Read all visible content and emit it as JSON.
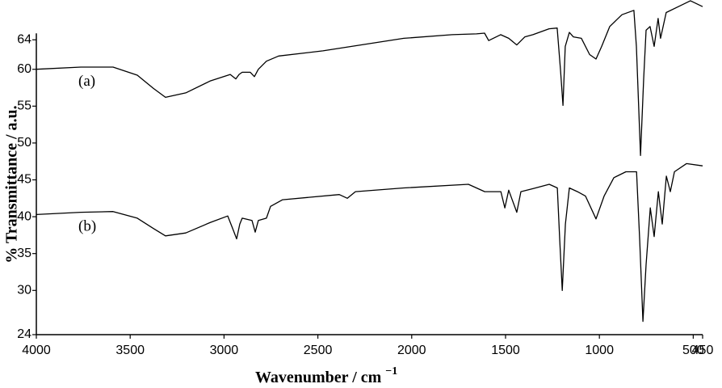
{
  "chart_data": {
    "type": "line",
    "xlabel": "Wavenumber / cm",
    "xlabel_superscript": "−1",
    "ylabel": "% Transmittance / a.u.",
    "xlim": [
      4000,
      450
    ],
    "ylim": [
      24,
      69.4
    ],
    "xticks": [
      4000,
      3500,
      3000,
      2500,
      2000,
      1500,
      1000,
      500,
      450
    ],
    "yticks": [
      24,
      30,
      35,
      40,
      45,
      50,
      55,
      60,
      64
    ],
    "series": [
      {
        "name": "(a)",
        "color": "#000000",
        "x": [
          4000,
          3763,
          3591,
          3462,
          3376,
          3312,
          3204,
          3075,
          2967,
          2937,
          2920,
          2903,
          2860,
          2838,
          2817,
          2774,
          2709,
          2473,
          2042,
          1784,
          1655,
          1612,
          1590,
          1526,
          1483,
          1440,
          1397,
          1354,
          1268,
          1225,
          1207,
          1194,
          1182,
          1160,
          1139,
          1096,
          1052,
          1018,
          988,
          945,
          880,
          816,
          803,
          781,
          764,
          751,
          730,
          708,
          687,
          674,
          644,
          579,
          515,
          450
        ],
        "values": [
          60,
          60.3,
          60.3,
          59.2,
          57.4,
          56.2,
          56.8,
          58.4,
          59.3,
          58.7,
          59.3,
          59.6,
          59.6,
          59.0,
          60,
          61.1,
          61.8,
          62.5,
          64.2,
          64.7,
          64.8,
          64.9,
          63.9,
          64.7,
          64.2,
          63.3,
          64.4,
          64.7,
          65.5,
          65.6,
          59.8,
          55.1,
          63.1,
          65.0,
          64.4,
          64.2,
          62.0,
          61.4,
          63.1,
          65.8,
          67.4,
          68.0,
          63.1,
          48.3,
          58.7,
          65.3,
          65.8,
          63.1,
          66.9,
          64.2,
          67.7,
          68.5,
          69.3,
          68.5
        ]
      },
      {
        "name": "(b)",
        "color": "#000000",
        "x": [
          4000,
          3763,
          3591,
          3462,
          3376,
          3312,
          3204,
          3075,
          2980,
          2954,
          2933,
          2916,
          2903,
          2851,
          2834,
          2817,
          2774,
          2752,
          2688,
          2386,
          2343,
          2300,
          2042,
          1698,
          1611,
          1525,
          1504,
          1483,
          1440,
          1418,
          1354,
          1267,
          1224,
          1211,
          1198,
          1181,
          1160,
          1117,
          1074,
          1018,
          975,
          923,
          859,
          802,
          785,
          768,
          751,
          729,
          708,
          686,
          665,
          643,
          622,
          600,
          536,
          450
        ],
        "values": [
          40.3,
          40.6,
          40.7,
          39.8,
          38.4,
          37.4,
          37.8,
          39.2,
          40.1,
          38.4,
          37.0,
          39.0,
          39.8,
          39.5,
          37.9,
          39.5,
          39.8,
          41.4,
          42.3,
          43.0,
          42.5,
          43.4,
          43.9,
          44.4,
          43.4,
          43.4,
          41.2,
          43.6,
          40.6,
          43.4,
          43.8,
          44.4,
          43.9,
          36.8,
          30.0,
          39.0,
          43.9,
          43.4,
          42.8,
          39.7,
          42.8,
          45.3,
          46.1,
          46.1,
          36.8,
          25.8,
          33.5,
          41.2,
          37.3,
          43.4,
          39.0,
          45.5,
          43.4,
          46.1,
          47.2,
          46.9
        ]
      }
    ]
  }
}
